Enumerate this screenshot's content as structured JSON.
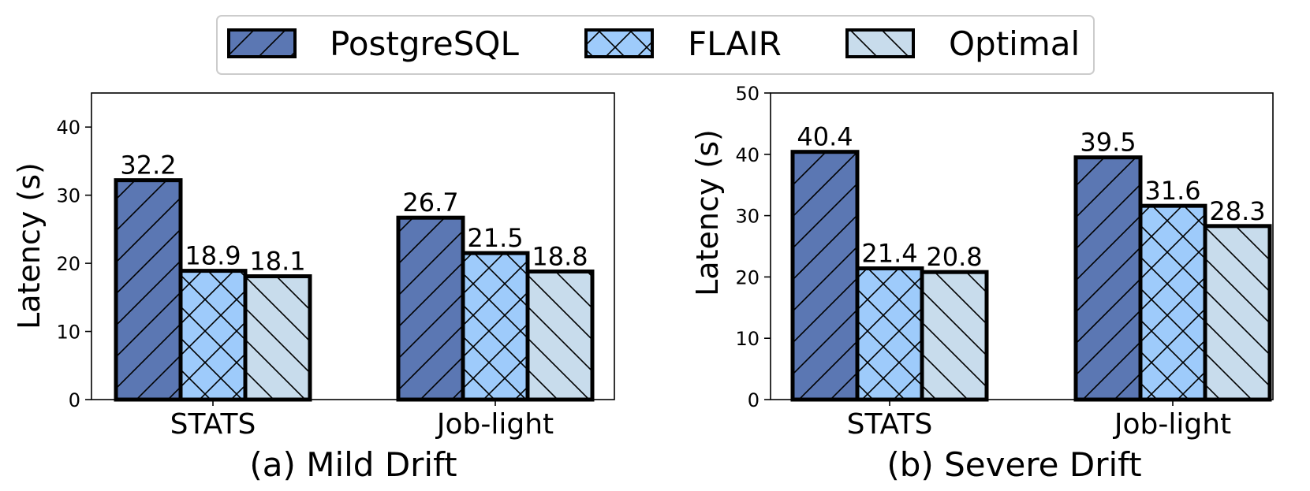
{
  "legend": {
    "series": [
      {
        "name": "PostgreSQL",
        "color": "#5b77b3",
        "pattern": "slash"
      },
      {
        "name": "FLAIR",
        "color": "#9ecbfb",
        "pattern": "cross"
      },
      {
        "name": "Optimal",
        "color": "#c8dcec",
        "pattern": "backslash"
      }
    ]
  },
  "chart_data": [
    {
      "type": "bar",
      "title": "(a) Mild Drift",
      "ylabel": "Latency (s)",
      "xlabel": "",
      "categories": [
        "STATS",
        "Job-light"
      ],
      "ylim": [
        0,
        45
      ],
      "yticks": [
        0,
        10,
        20,
        30,
        40
      ],
      "series": [
        {
          "name": "PostgreSQL",
          "values": [
            32.2,
            26.7
          ],
          "labels": [
            "32.2",
            "26.7"
          ]
        },
        {
          "name": "FLAIR",
          "values": [
            18.9,
            21.5
          ],
          "labels": [
            "18.9",
            "21.5"
          ]
        },
        {
          "name": "Optimal",
          "values": [
            18.1,
            18.8
          ],
          "labels": [
            "18.1",
            "18.8"
          ]
        }
      ]
    },
    {
      "type": "bar",
      "title": "(b) Severe Drift",
      "ylabel": "Latency (s)",
      "xlabel": "",
      "categories": [
        "STATS",
        "Job-light"
      ],
      "ylim": [
        0,
        50
      ],
      "yticks": [
        0,
        10,
        20,
        30,
        40,
        50
      ],
      "series": [
        {
          "name": "PostgreSQL",
          "values": [
            40.4,
            39.5
          ],
          "labels": [
            "40.4",
            "39.5"
          ]
        },
        {
          "name": "FLAIR",
          "values": [
            21.4,
            31.6
          ],
          "labels": [
            "21.4",
            "31.6"
          ]
        },
        {
          "name": "Optimal",
          "values": [
            20.8,
            28.3
          ],
          "labels": [
            "20.8",
            "28.3"
          ]
        }
      ]
    }
  ]
}
